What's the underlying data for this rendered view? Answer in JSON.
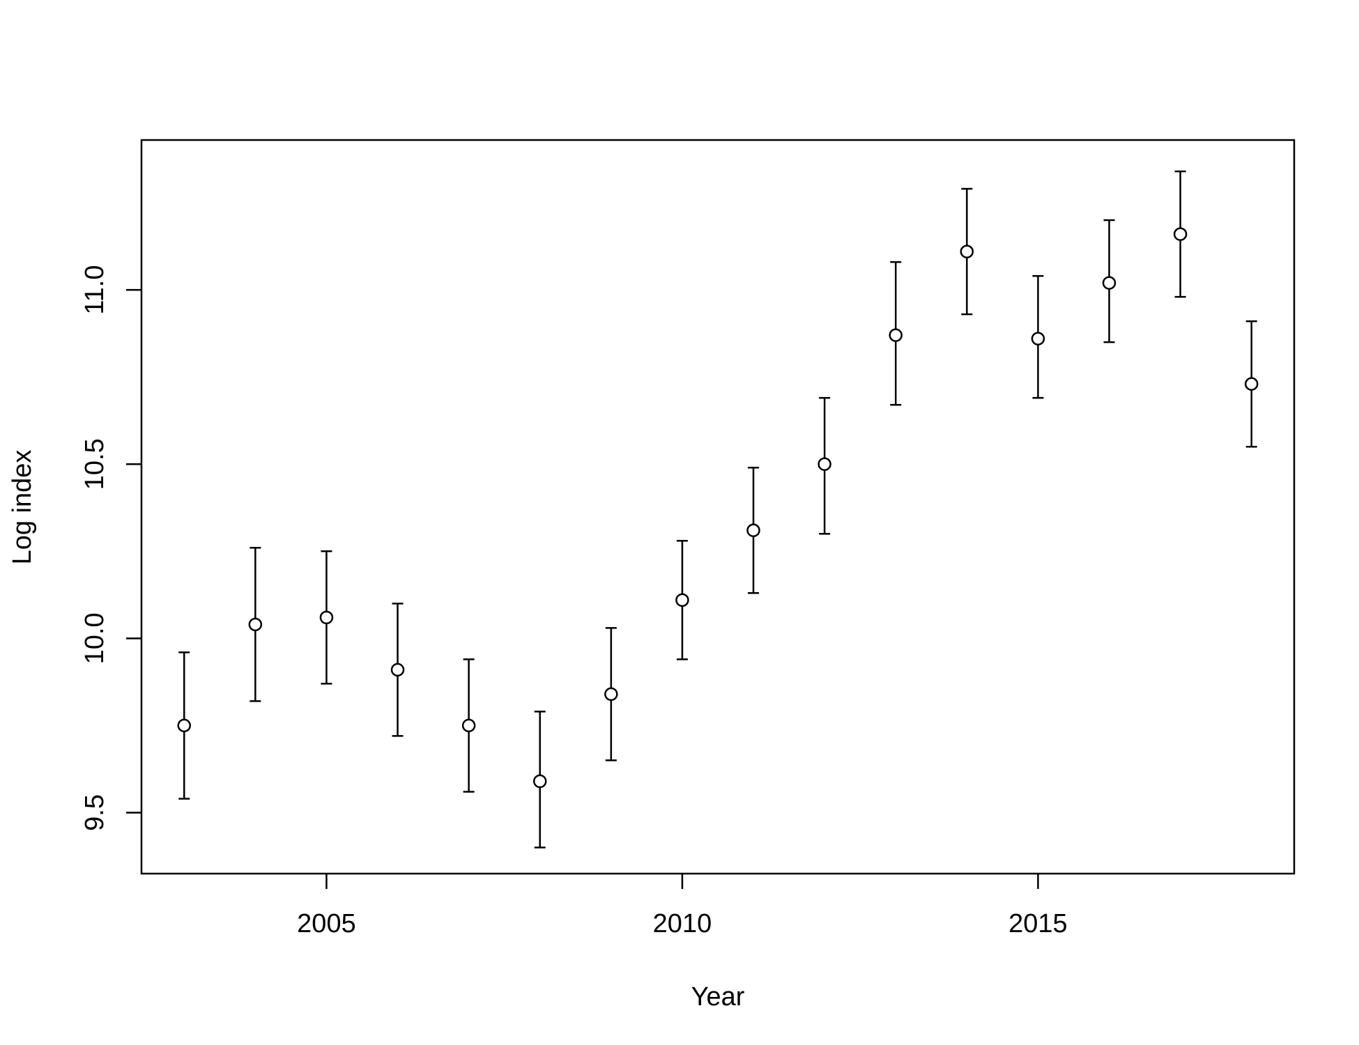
{
  "chart_data": {
    "type": "scatter",
    "xlabel": "Year",
    "ylabel": "Log index",
    "xlim": [
      2002.4,
      2018.6
    ],
    "ylim": [
      9.325,
      11.43
    ],
    "x_ticks": [
      2005,
      2010,
      2015
    ],
    "y_ticks": [
      9.5,
      10.0,
      10.5,
      11.0
    ],
    "y_tick_labels": [
      "9.5",
      "10.0",
      "10.5",
      "11.0"
    ],
    "grid": false,
    "legend": "none",
    "points": [
      {
        "x": 2003,
        "y": 9.75,
        "lower": 9.54,
        "upper": 9.96
      },
      {
        "x": 2004,
        "y": 10.04,
        "lower": 9.82,
        "upper": 10.26
      },
      {
        "x": 2005,
        "y": 10.06,
        "lower": 9.87,
        "upper": 10.25
      },
      {
        "x": 2006,
        "y": 9.91,
        "lower": 9.72,
        "upper": 10.1
      },
      {
        "x": 2007,
        "y": 9.75,
        "lower": 9.56,
        "upper": 9.94
      },
      {
        "x": 2008,
        "y": 9.59,
        "lower": 9.4,
        "upper": 9.79
      },
      {
        "x": 2009,
        "y": 9.84,
        "lower": 9.65,
        "upper": 10.03
      },
      {
        "x": 2010,
        "y": 10.11,
        "lower": 9.94,
        "upper": 10.28
      },
      {
        "x": 2011,
        "y": 10.31,
        "lower": 10.13,
        "upper": 10.49
      },
      {
        "x": 2012,
        "y": 10.5,
        "lower": 10.3,
        "upper": 10.69
      },
      {
        "x": 2013,
        "y": 10.87,
        "lower": 10.67,
        "upper": 11.08
      },
      {
        "x": 2014,
        "y": 11.11,
        "lower": 10.93,
        "upper": 11.29
      },
      {
        "x": 2015,
        "y": 10.86,
        "lower": 10.69,
        "upper": 11.04
      },
      {
        "x": 2016,
        "y": 11.02,
        "lower": 10.85,
        "upper": 11.2
      },
      {
        "x": 2017,
        "y": 11.16,
        "lower": 10.98,
        "upper": 11.34
      },
      {
        "x": 2018,
        "y": 10.73,
        "lower": 10.55,
        "upper": 10.91
      }
    ]
  }
}
